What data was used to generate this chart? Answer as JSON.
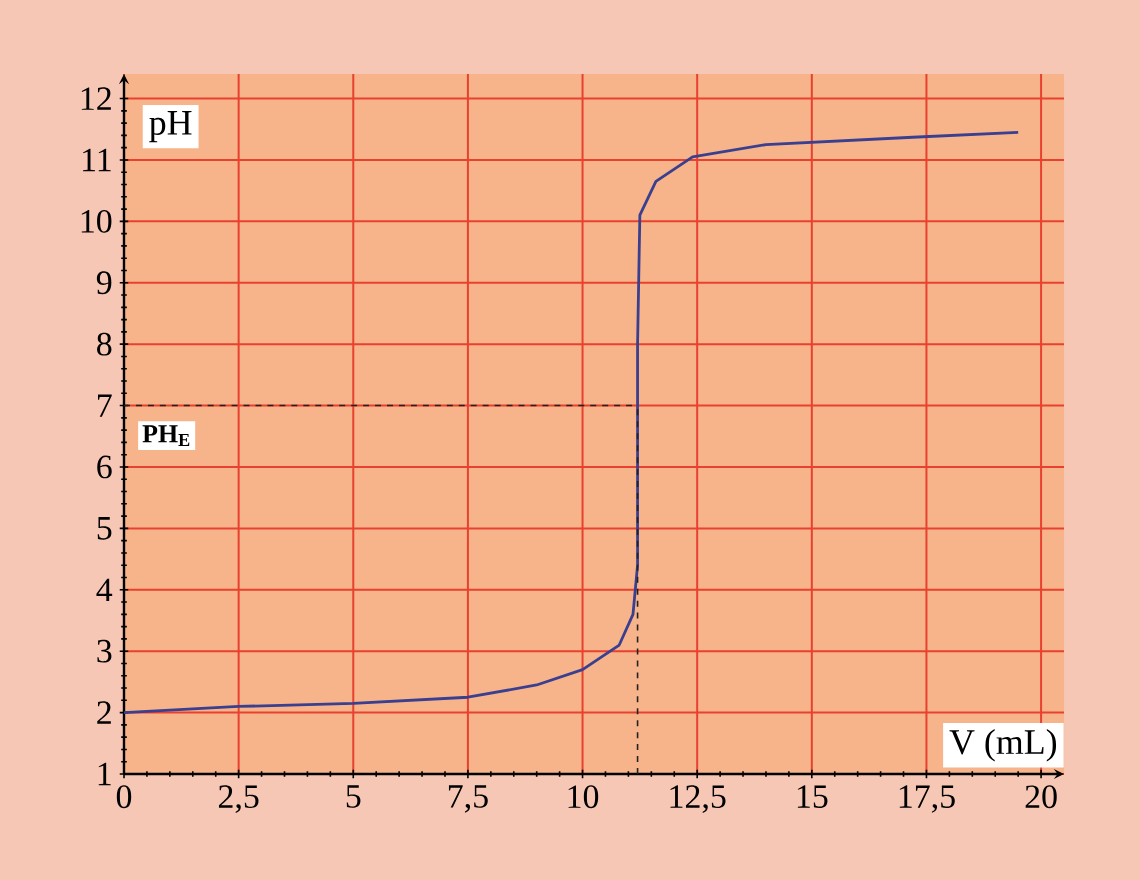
{
  "chart_data": {
    "type": "line",
    "xlabel": "V (mL)",
    "ylabel": "pH",
    "x": [
      0,
      2.5,
      5,
      7.5,
      9,
      10,
      10.8,
      11.1,
      11.2,
      11.2,
      11.25,
      11.6,
      12.4,
      14,
      17.2,
      19.5
    ],
    "series": [
      {
        "color": "#3a3f8f",
        "values": [
          2.0,
          2.1,
          2.15,
          2.25,
          2.45,
          2.7,
          3.1,
          3.6,
          4.4,
          8,
          10.1,
          10.65,
          11.05,
          11.25,
          11.37,
          11.45
        ]
      }
    ],
    "xlim": [
      0,
      20.5
    ],
    "ylim": [
      1,
      12.4
    ],
    "xticks": [
      0,
      {
        "value": 2.5,
        "label": "2,5"
      },
      5,
      {
        "value": 7.5,
        "label": "7,5"
      },
      10,
      {
        "value": 12.5,
        "label": "12,5"
      },
      15,
      {
        "value": 17.5,
        "label": "17,5"
      },
      20
    ],
    "yticks": [
      1,
      2,
      3,
      4,
      5,
      6,
      7,
      8,
      9,
      10,
      11,
      12
    ],
    "grid": true,
    "ref_lines": [
      {
        "axis": "y",
        "value": 7,
        "label": "PH$_{E}$",
        "line_style": "dashed",
        "color": "#222222"
      },
      {
        "axis": "x",
        "value": 11.2,
        "line_style": "dashed",
        "color": "#222222"
      }
    ]
  }
}
